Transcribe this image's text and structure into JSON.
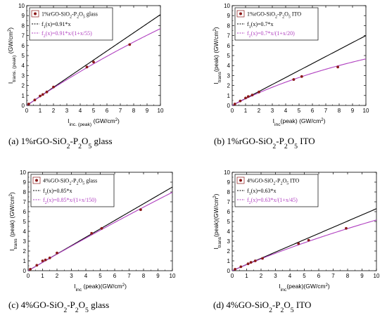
{
  "chart_data": [
    {
      "type": "scatter",
      "caption": {
        "main": "(a) 1%rGO-SiO",
        "s1": "2",
        "mid": "-P",
        "s2": "2",
        "mid2": "O",
        "s3": "5",
        "end": " glass"
      },
      "xlabel": {
        "main": "I",
        "sub": "inc. (peak)",
        "end": " (GW/cm",
        "sup": "2",
        "close": ")"
      },
      "ylabel": {
        "main": "I",
        "sub": "trans. (peak)",
        "end": " (GW/cm",
        "sup": "2",
        "close": ")"
      },
      "xlim": [
        0,
        10
      ],
      "ylim": [
        0,
        10
      ],
      "x_ticks": [
        "0",
        "1",
        "2",
        "3",
        "4",
        "5",
        "6",
        "7",
        "8",
        "9",
        "10"
      ],
      "y_ticks": [
        "0",
        "1",
        "2",
        "3",
        "4",
        "5",
        "6",
        "7",
        "8",
        "9",
        "10"
      ],
      "legend": {
        "data": {
          "pre": "1%rGO-SiO",
          "s1": "2",
          "mid": "-P",
          "s2": "2",
          "mid2": "O",
          "s3": "5",
          "end": " glass"
        },
        "f1": {
          "pre": "f",
          "sub": "1",
          "end": "(x)=0.91*x"
        },
        "f2": {
          "pre": "f",
          "sub": "2",
          "end": "(x)=0.91*x/(1+x/55)"
        }
      },
      "fit": {
        "a": 0.91,
        "sat": 55
      },
      "points": [
        [
          0.15,
          0.15
        ],
        [
          0.6,
          0.55
        ],
        [
          1.0,
          0.95
        ],
        [
          1.2,
          1.1
        ],
        [
          1.5,
          1.35
        ],
        [
          2.0,
          1.85
        ],
        [
          4.5,
          3.85
        ],
        [
          5.0,
          4.35
        ],
        [
          7.7,
          6.1
        ]
      ],
      "colors": {
        "point": "#8b1a1a",
        "f1": "#000000",
        "f2": "#b040c0"
      }
    },
    {
      "type": "scatter",
      "caption": {
        "main": "(b) 1%rGO-SiO",
        "s1": "2",
        "mid": "-P",
        "s2": "2",
        "mid2": "O",
        "s3": "5",
        "end": " ITO"
      },
      "xlabel": {
        "main": "I",
        "sub": "inc",
        "end": "(peak) (GW/cm",
        "sup": "2",
        "close": ")"
      },
      "ylabel": {
        "main": "I",
        "sub": "trans",
        "end": "(peak) (GW/cm",
        "sup": "2",
        "close": ")"
      },
      "xlim": [
        0,
        10
      ],
      "ylim": [
        0,
        10
      ],
      "x_ticks": [
        "0",
        "1",
        "2",
        "3",
        "4",
        "5",
        "6",
        "7",
        "8",
        "9",
        "10"
      ],
      "y_ticks": [
        "0",
        "1",
        "2",
        "3",
        "4",
        "5",
        "6",
        "7",
        "8",
        "9",
        "10"
      ],
      "legend": {
        "data": {
          "pre": "1%rGO-SiO",
          "s1": "2",
          "mid": "-P",
          "s2": "2",
          "mid2": "O",
          "s3": "5",
          "end": " ITO"
        },
        "f1": {
          "pre": "f",
          "sub": "1",
          "end": "(x)=0.7*x"
        },
        "f2": {
          "pre": "f",
          "sub": "2",
          "end": "(x)=0.7*x/(1+x/20)"
        }
      },
      "fit": {
        "a": 0.7,
        "sat": 20
      },
      "points": [
        [
          0.2,
          0.15
        ],
        [
          0.6,
          0.45
        ],
        [
          1.0,
          0.75
        ],
        [
          1.2,
          0.9
        ],
        [
          1.5,
          1.05
        ],
        [
          2.0,
          1.35
        ],
        [
          4.6,
          2.6
        ],
        [
          5.2,
          2.9
        ],
        [
          7.9,
          3.85
        ]
      ],
      "colors": {
        "point": "#8b1a1a",
        "f1": "#000000",
        "f2": "#b040c0"
      }
    },
    {
      "type": "scatter",
      "caption": {
        "main": "(c) 4%GO-SiO",
        "s1": "2",
        "mid": "-P",
        "s2": "2",
        "mid2": "O",
        "s3": "5",
        "end": " glass"
      },
      "xlabel": {
        "main": "I",
        "sub": "inc",
        "end": " (peak)(GW/cm",
        "sup": "2",
        "close": ")"
      },
      "ylabel": {
        "main": "I",
        "sub": "trans",
        "end": " (peak) (GW/cm",
        "sup": "2",
        "close": ")"
      },
      "xlim": [
        0,
        10
      ],
      "ylim": [
        0,
        10
      ],
      "x_ticks": [
        "0",
        "1",
        "2",
        "3",
        "4",
        "5",
        "6",
        "7",
        "8",
        "9",
        "10"
      ],
      "y_ticks": [
        "0",
        "1",
        "2",
        "3",
        "4",
        "5",
        "6",
        "7",
        "8",
        "9",
        "10"
      ],
      "legend": {
        "data": {
          "pre": "4%GO-SiO",
          "s1": "2",
          "mid": "-P",
          "s2": "2",
          "mid2": "O",
          "s3": "5",
          "end": " glass"
        },
        "f1": {
          "pre": "f",
          "sub": "1",
          "end": "(x)=0.85*x"
        },
        "f2": {
          "pre": "f",
          "sub": "2",
          "end": "(x)=0.85*x/(1+x/150)"
        }
      },
      "fit": {
        "a": 0.85,
        "sat": 150
      },
      "points": [
        [
          0.15,
          0.15
        ],
        [
          0.6,
          0.55
        ],
        [
          1.0,
          1.0
        ],
        [
          1.2,
          1.1
        ],
        [
          1.5,
          1.3
        ],
        [
          2.0,
          1.8
        ],
        [
          4.4,
          3.8
        ],
        [
          5.1,
          4.3
        ],
        [
          7.8,
          6.2
        ]
      ],
      "colors": {
        "point": "#8b1a1a",
        "f1": "#000000",
        "f2": "#b040c0"
      }
    },
    {
      "type": "scatter",
      "caption": {
        "main": "(d) 4%GO-SiO",
        "s1": "2",
        "mid": "-P",
        "s2": "2",
        "mid2": "O",
        "s3": "5",
        "end": " ITO"
      },
      "xlabel": {
        "main": "I",
        "sub": "inc",
        "end": "(peak)(GW/cm",
        "sup": "2",
        "close": ")"
      },
      "ylabel": {
        "main": "I",
        "sub": "trans",
        "end": "(peak)(GW/cm",
        "sup": "2",
        "close": ")"
      },
      "xlim": [
        0,
        10
      ],
      "ylim": [
        0,
        10
      ],
      "x_ticks": [
        "0",
        "1",
        "2",
        "3",
        "4",
        "5",
        "6",
        "7",
        "8",
        "9",
        "10"
      ],
      "y_ticks": [
        "0",
        "1",
        "2",
        "3",
        "4",
        "5",
        "6",
        "7",
        "8",
        "9",
        "10"
      ],
      "legend": {
        "data": {
          "pre": "4%GO-SiO",
          "s1": "2",
          "mid": "-P",
          "s2": "2",
          "mid2": "O",
          "s3": "5",
          "end": " ITO"
        },
        "f1": {
          "pre": "f",
          "sub": "1",
          "end": "(x)=0.63*x"
        },
        "f2": {
          "pre": "f",
          "sub": "2",
          "end": "(x)=0.63*x/(1+x/45)"
        }
      },
      "fit": {
        "a": 0.63,
        "sat": 45
      },
      "points": [
        [
          0.2,
          0.15
        ],
        [
          0.6,
          0.4
        ],
        [
          1.1,
          0.7
        ],
        [
          1.3,
          0.85
        ],
        [
          1.6,
          1.0
        ],
        [
          2.1,
          1.25
        ],
        [
          4.6,
          2.75
        ],
        [
          5.3,
          3.1
        ],
        [
          7.9,
          4.3
        ]
      ],
      "colors": {
        "point": "#8b1a1a",
        "f1": "#000000",
        "f2": "#b040c0"
      }
    }
  ]
}
